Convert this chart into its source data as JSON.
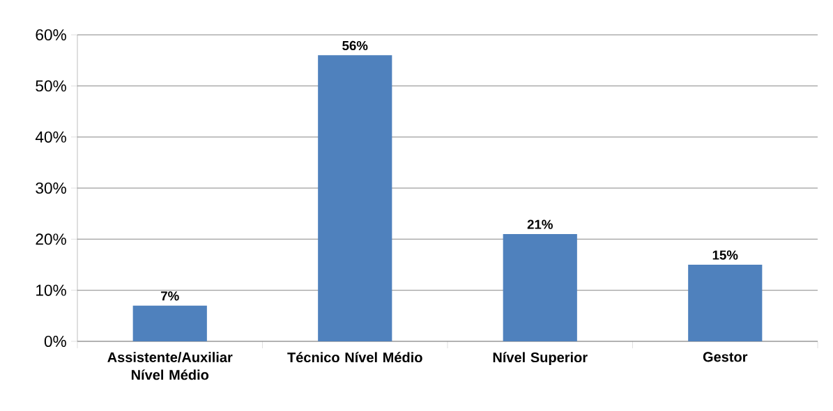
{
  "chart_data": {
    "type": "bar",
    "categories": [
      "Assistente/Auxiliar Nível Médio",
      "Técnico Nível Médio",
      "Nível Superior",
      "Gestor"
    ],
    "values": [
      7,
      56,
      21,
      15
    ],
    "value_labels": [
      "7%",
      "56%",
      "21%",
      "15%"
    ],
    "color": "#4f81bd",
    "ylim": [
      0,
      60
    ],
    "yticks": [
      {
        "value": 0,
        "label": "0%"
      },
      {
        "value": 10,
        "label": "10%"
      },
      {
        "value": 20,
        "label": "20%"
      },
      {
        "value": 30,
        "label": "30%"
      },
      {
        "value": 40,
        "label": "40%"
      },
      {
        "value": 50,
        "label": "50%"
      },
      {
        "value": 60,
        "label": "60%"
      }
    ],
    "grid": "y"
  }
}
